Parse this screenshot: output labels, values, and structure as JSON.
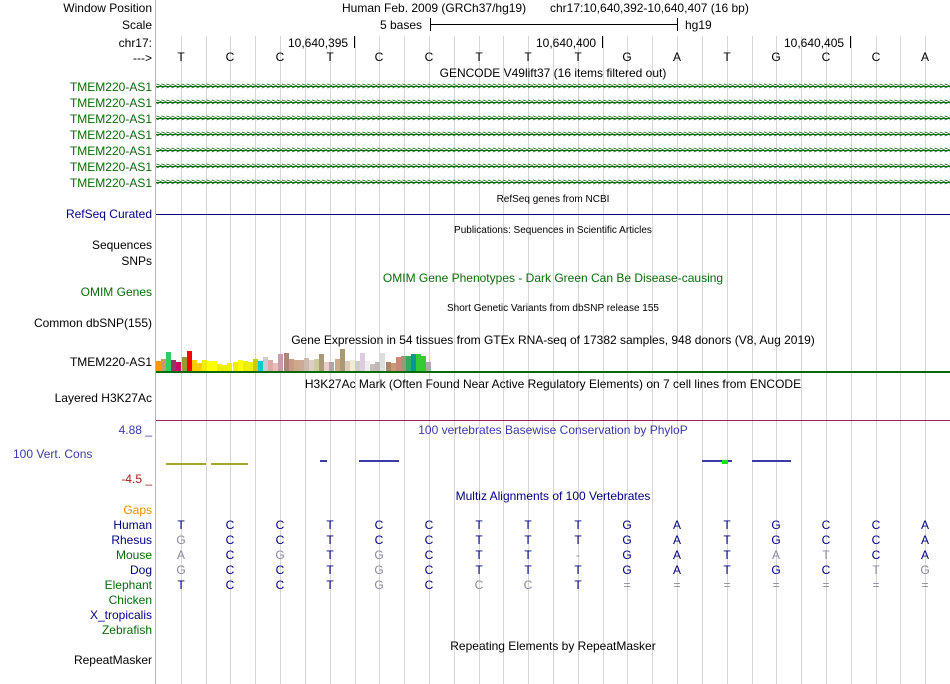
{
  "header": {
    "window_position_label": "Window Position",
    "assembly": "Human Feb. 2009 (GRCh37/hg19)",
    "position": "chr17:10,640,392-10,640,407 (16 bp)",
    "scale_label": "Scale",
    "scale_text": "5 bases",
    "scale_db": "hg19",
    "chrom_label": "chr17:",
    "strand_label": "--->",
    "ticks": [
      "10,640,395",
      "10,640,400",
      "10,640,405"
    ]
  },
  "sequence": [
    "T",
    "C",
    "C",
    "T",
    "C",
    "C",
    "T",
    "T",
    "T",
    "G",
    "A",
    "T",
    "G",
    "C",
    "C",
    "A"
  ],
  "tracks": {
    "gencode_title": "GENCODE V49lift37 (16 items filtered out)",
    "gencode_items": [
      "TMEM220-AS1",
      "TMEM220-AS1",
      "TMEM220-AS1",
      "TMEM220-AS1",
      "TMEM220-AS1",
      "TMEM220-AS1",
      "TMEM220-AS1"
    ],
    "refseq_label": "RefSeq Curated",
    "refseq_title": "RefSeq genes from NCBI",
    "pubs_title": "Publications: Sequences in Scientific Articles",
    "sequences_label": "Sequences",
    "snps_label": "SNPs",
    "omim_title": "OMIM Gene Phenotypes - Dark Green Can Be Disease-causing",
    "omim_label": "OMIM Genes",
    "dbsnp_title": "Short Genetic Variants from dbSNP release 155",
    "dbsnp_label": "Common dbSNP(155)",
    "gtex_title": "Gene Expression in 54 tissues from GTEx RNA-seq of 17382 samples, 948 donors (V8, Aug 2019)",
    "gtex_label": "TMEM220-AS1",
    "h3k27_title": "H3K27Ac Mark (Often Found Near Active Regulatory Elements) on 7 cell lines from ENCODE",
    "h3k27_label": "Layered H3K27Ac",
    "phylop_max": "4.88 _",
    "phylop_title": "100 vertebrates Basewise Conservation by PhyloP",
    "phylop_label": "100 Vert. Cons",
    "phylop_min": "-4.5 _",
    "multiz_title": "Multiz Alignments of 100 Vertebrates",
    "gaps_label": "Gaps",
    "repeat_title": "Repeating Elements by RepeatMasker",
    "repeat_label": "RepeatMasker"
  },
  "gtex_levels": [
    0.45,
    0.55,
    0.85,
    0.5,
    0.4,
    0.65,
    0.9,
    0.5,
    0.35,
    0.5,
    0.45,
    0.45,
    0.3,
    0.25,
    0.35,
    0.4,
    0.5,
    0.45,
    0.4,
    0.55,
    0.45,
    0.65,
    0.5,
    0.35,
    0.75,
    0.8,
    0.55,
    0.5,
    0.5,
    0.6,
    0.5,
    0.55,
    0.75,
    0.4,
    0.4,
    0.55,
    1.0,
    0.45,
    0.5,
    0.45,
    0.8,
    0.45,
    0.3,
    0.4,
    0.8,
    0.4,
    0.35,
    0.65,
    0.7,
    0.7,
    0.75,
    0.75,
    0.7,
    0.4
  ],
  "gtex_colors": [
    "#ff9900",
    "#cc9966",
    "#33cc66",
    "#993366",
    "#cc0066",
    "#999933",
    "#ff0000",
    "#ffcc00",
    "#ffcc00",
    "#eeee00",
    "#ffff00",
    "#ffff00",
    "#eeee00",
    "#eeee00",
    "#eeee00",
    "#eeee00",
    "#ffff00",
    "#eeee00",
    "#eeee00",
    "#cccc00",
    "#00cccc",
    "#cccccc",
    "#ddaaaa",
    "#eebbbb",
    "#cc99aa",
    "#aa8877",
    "#cc9988",
    "#ccaa88",
    "#ccaa99",
    "#ccbbaa",
    "#ddcccc",
    "#cccc99",
    "#aa9977",
    "#eecccc",
    "#aaaaaa",
    "#ccaa88",
    "#aa9977",
    "#ddccbb",
    "#eeeecc",
    "#cccccc",
    "#ddccdd",
    "#eeeeee",
    "#ccbbbb",
    "#bbbbbb",
    "#dddddd",
    "#aa8866",
    "#cc9977",
    "#cc8877",
    "#999977",
    "#33aa66",
    "#009999",
    "#33cc33",
    "#33cc33",
    "#aaaaaa"
  ],
  "phylop_colors": {
    "positive": "#3a3aa8",
    "negative": "#a6a626"
  },
  "multiz_rows": [
    {
      "species": "Human",
      "bases": [
        "T",
        "C",
        "C",
        "T",
        "C",
        "C",
        "T",
        "T",
        "T",
        "G",
        "A",
        "T",
        "G",
        "C",
        "C",
        "A"
      ]
    },
    {
      "species": "Rhesus",
      "bases": [
        "G",
        "C",
        "C",
        "T",
        "C",
        "C",
        "T",
        "T",
        "T",
        "G",
        "A",
        "T",
        "G",
        "C",
        "C",
        "A"
      ]
    },
    {
      "species": "Mouse",
      "bases": [
        "A",
        "C",
        "G",
        "T",
        "G",
        "C",
        "T",
        "T",
        "-",
        "G",
        "A",
        "T",
        "A",
        "T",
        "C",
        "A"
      ]
    },
    {
      "species": "Dog",
      "bases": [
        "G",
        "C",
        "C",
        "T",
        "G",
        "C",
        "T",
        "T",
        "T",
        "G",
        "A",
        "T",
        "G",
        "C",
        "T",
        "G"
      ]
    },
    {
      "species": "Elephant",
      "bases": [
        "T",
        "C",
        "C",
        "T",
        "G",
        "C",
        "C",
        "C",
        "T",
        "=",
        "=",
        "=",
        "=",
        "=",
        "=",
        "="
      ]
    },
    {
      "species": "Chicken",
      "bases": []
    },
    {
      "species": "X_tropicalis",
      "bases": []
    },
    {
      "species": "Zebrafish",
      "bases": []
    }
  ],
  "colors": {
    "navy": "#000080",
    "green": "#0a6a0a",
    "phylop_title": "#3a3aa8",
    "red_label": "#a81a1a",
    "gaps": "#e0900a",
    "h3k27_line": "#a02060"
  }
}
